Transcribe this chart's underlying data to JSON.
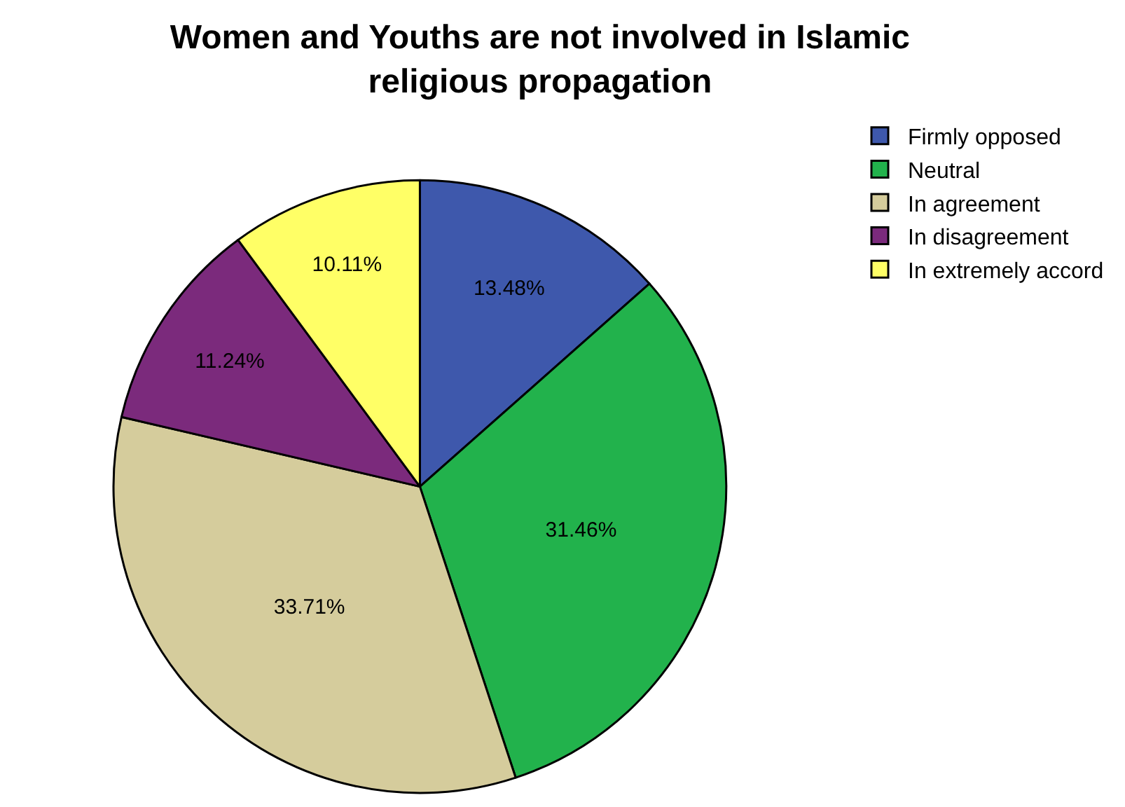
{
  "chart_data": {
    "type": "pie",
    "title": "Women and Youths are not involved in Islamic religious propagation",
    "categories": [
      "Firmly opposed",
      "Neutral",
      "In agreement",
      "In disagreement",
      "In extremely accord"
    ],
    "values": [
      13.48,
      31.46,
      33.71,
      11.24,
      10.11
    ],
    "value_labels": [
      "13.48%",
      "31.46%",
      "33.71%",
      "11.24%",
      "10.11%"
    ],
    "colors": [
      "#3e58ac",
      "#22b24c",
      "#d5cc9c",
      "#7b2a7c",
      "#ffff66"
    ],
    "legend": "top right"
  }
}
